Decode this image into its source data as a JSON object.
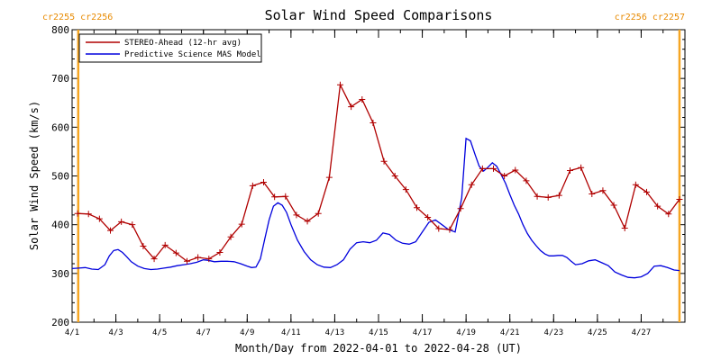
{
  "header": {
    "corner_left": "cr2255 cr2256",
    "corner_right": "cr2256 cr2257"
  },
  "colors": {
    "stereo": "#b00000",
    "model": "#0000dd",
    "boundary": "#f5a623",
    "axis": "#000000"
  },
  "chart_data": {
    "type": "line",
    "title": "Solar Wind Speed Comparisons",
    "xlabel": "Month/Day from 2022-04-01 to 2022-04-28 (UT)",
    "ylabel": "Solar Wind Speed (km/s)",
    "xlim": [
      0,
      28
    ],
    "ylim": [
      200,
      800
    ],
    "yticks": [
      200,
      300,
      400,
      500,
      600,
      700,
      800
    ],
    "xticks": [
      {
        "x": 0,
        "label": "4/1"
      },
      {
        "x": 2,
        "label": "4/3"
      },
      {
        "x": 4,
        "label": "4/5"
      },
      {
        "x": 6,
        "label": "4/7"
      },
      {
        "x": 8,
        "label": "4/9"
      },
      {
        "x": 10,
        "label": "4/11"
      },
      {
        "x": 12,
        "label": "4/13"
      },
      {
        "x": 14,
        "label": "4/15"
      },
      {
        "x": 16,
        "label": "4/17"
      },
      {
        "x": 18,
        "label": "4/19"
      },
      {
        "x": 20,
        "label": "4/21"
      },
      {
        "x": 22,
        "label": "4/23"
      },
      {
        "x": 24,
        "label": "4/25"
      },
      {
        "x": 26,
        "label": "4/27"
      }
    ],
    "carrington_boundaries": [
      0.28,
      27.75
    ],
    "legend_position": "top-left",
    "series": [
      {
        "name": "STEREO-Ahead (12-hr avg)",
        "color_key": "stereo",
        "markers": true,
        "x": [
          0.25,
          0.75,
          1.25,
          1.75,
          2.25,
          2.75,
          3.25,
          3.75,
          4.25,
          4.75,
          5.25,
          5.75,
          6.25,
          6.75,
          7.25,
          7.75,
          8.25,
          8.75,
          9.25,
          9.75,
          10.25,
          10.75,
          11.25,
          11.75,
          12.25,
          12.75,
          13.25,
          13.75,
          14.25,
          14.75,
          15.25,
          15.75,
          16.25,
          16.75,
          17.25,
          17.75,
          18.25,
          18.75,
          19.25,
          19.75,
          20.25,
          20.75,
          21.25,
          21.75,
          22.25,
          22.75,
          23.25,
          23.75,
          24.25,
          24.75,
          25.25,
          25.75,
          26.25,
          26.75,
          27.25,
          27.75
        ],
        "values": [
          423,
          422,
          412,
          388,
          406,
          400,
          356,
          330,
          358,
          342,
          325,
          333,
          330,
          343,
          375,
          401,
          480,
          487,
          457,
          458,
          420,
          407,
          423,
          497,
          687,
          642,
          657,
          609,
          530,
          500,
          472,
          435,
          415,
          392,
          390,
          433,
          482,
          515,
          515,
          500,
          512,
          490,
          458,
          456,
          460,
          511,
          517,
          463,
          470,
          440,
          393,
          482,
          467,
          438,
          422,
          452
        ]
      },
      {
        "name": "Predictive Science MAS Model",
        "color_key": "model",
        "markers": false,
        "x": [
          0.0,
          0.3,
          0.6,
          0.9,
          1.2,
          1.5,
          1.7,
          1.9,
          2.1,
          2.3,
          2.5,
          2.7,
          3.0,
          3.3,
          3.6,
          3.9,
          4.2,
          4.5,
          4.8,
          5.1,
          5.4,
          5.7,
          6.0,
          6.2,
          6.5,
          6.8,
          7.1,
          7.4,
          7.7,
          8.0,
          8.2,
          8.4,
          8.6,
          8.8,
          9.0,
          9.2,
          9.4,
          9.6,
          9.8,
          10.0,
          10.3,
          10.6,
          10.9,
          11.2,
          11.5,
          11.8,
          12.1,
          12.4,
          12.7,
          13.0,
          13.3,
          13.6,
          13.9,
          14.2,
          14.5,
          14.8,
          15.1,
          15.4,
          15.7,
          16.0,
          16.3,
          16.6,
          16.9,
          17.2,
          17.5,
          17.8,
          18.0,
          18.2,
          18.4,
          18.6,
          18.8,
          19.0,
          19.2,
          19.4,
          19.6,
          19.8,
          20.0,
          20.2,
          20.4,
          20.6,
          20.8,
          21.0,
          21.2,
          21.4,
          21.6,
          21.8,
          22.0,
          22.2,
          22.4,
          22.6,
          22.8,
          23.0,
          23.3,
          23.6,
          23.9,
          24.2,
          24.5,
          24.8,
          25.1,
          25.4,
          25.7,
          26.0,
          26.3,
          26.6,
          26.9,
          27.2,
          27.5,
          27.75
        ],
        "values": [
          310,
          311,
          312,
          309,
          308,
          318,
          336,
          347,
          349,
          343,
          334,
          324,
          315,
          310,
          308,
          309,
          311,
          313,
          316,
          318,
          320,
          323,
          328,
          327,
          324,
          325,
          325,
          324,
          320,
          315,
          312,
          313,
          330,
          370,
          410,
          438,
          445,
          440,
          425,
          400,
          368,
          345,
          328,
          318,
          313,
          312,
          318,
          328,
          350,
          363,
          365,
          363,
          368,
          383,
          380,
          368,
          362,
          360,
          365,
          385,
          405,
          410,
          400,
          390,
          385,
          455,
          577,
          572,
          545,
          520,
          510,
          518,
          527,
          520,
          503,
          485,
          462,
          440,
          422,
          400,
          382,
          368,
          357,
          347,
          340,
          336,
          336,
          337,
          337,
          333,
          325,
          318,
          320,
          326,
          328,
          322,
          316,
          303,
          297,
          292,
          291,
          293,
          300,
          315,
          316,
          312,
          307,
          306
        ]
      }
    ]
  }
}
